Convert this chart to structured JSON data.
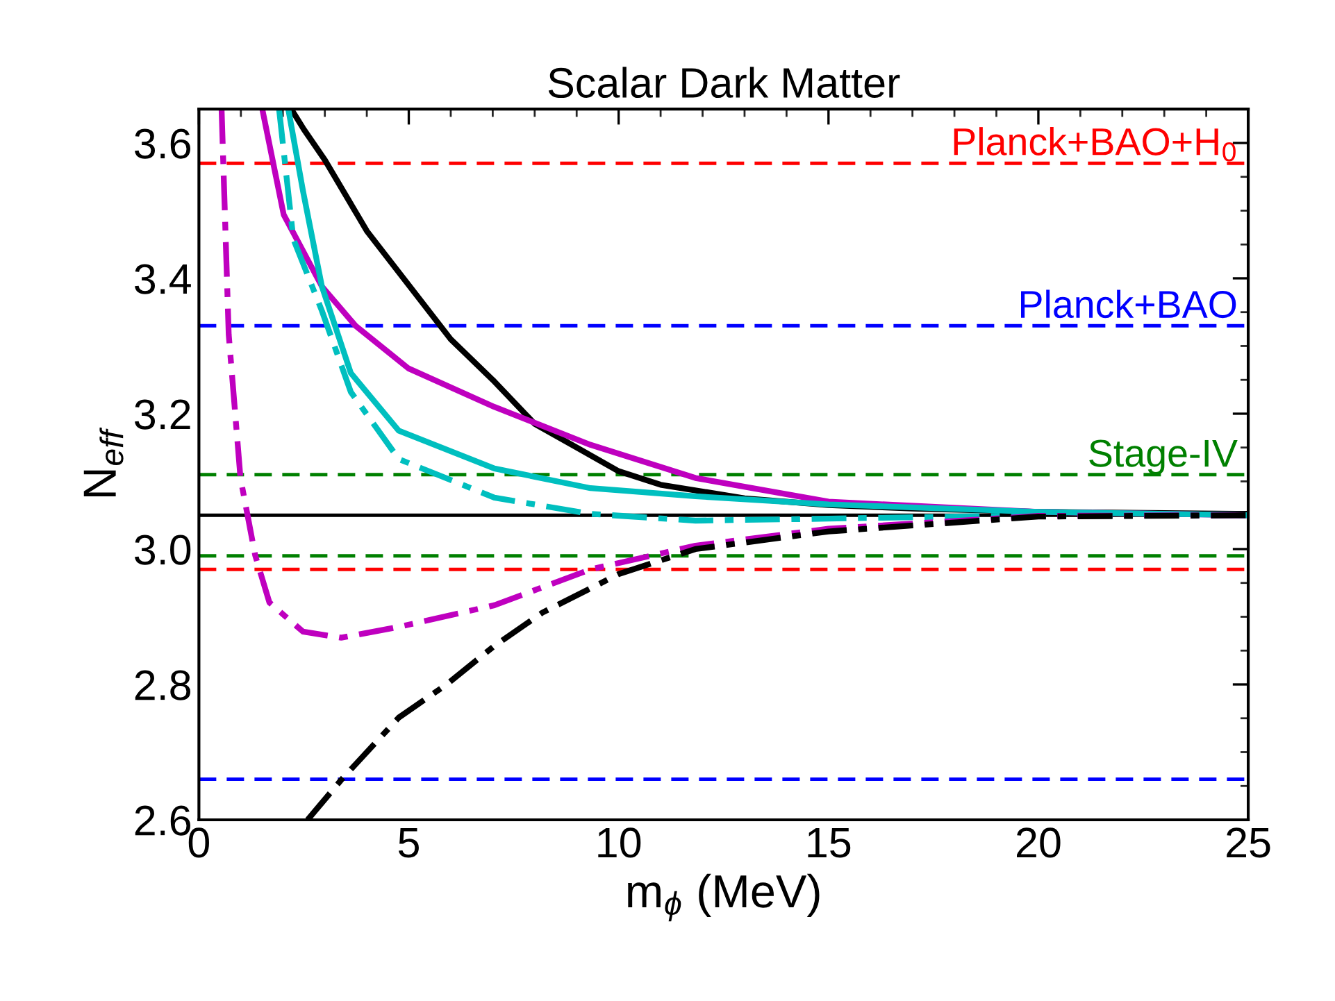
{
  "chart_data": {
    "type": "line",
    "title": "Scalar Dark Matter",
    "xlabel": "m$_{ϕ}$ (MeV)",
    "ylabel": "N$_{eff}$",
    "xlim": [
      0,
      25
    ],
    "xticks": [
      0,
      5,
      10,
      15,
      20,
      25
    ],
    "ylim": [
      2.6,
      3.65
    ],
    "yticks": [
      2.6,
      2.8,
      {
        "value": 3,
        "label": "3.0"
      },
      3.2,
      3.4,
      3.6
    ],
    "grid": false,
    "legend": false,
    "marker": "none",
    "series": [
      {
        "color": "#000000",
        "line_style": "solid",
        "x": [
          2.2,
          2.5,
          3.0,
          4,
          5,
          6,
          7,
          8,
          9,
          10,
          11,
          12,
          13,
          15,
          17,
          20,
          25
        ],
        "values": [
          3.65,
          3.62,
          3.575,
          3.47,
          3.39,
          3.31,
          3.25,
          3.185,
          3.15,
          3.115,
          3.095,
          3.085,
          3.075,
          3.065,
          3.06,
          3.055,
          3.052
        ]
      },
      {
        "color": "#bf00bf",
        "line_style": "solid",
        "x": [
          1.51,
          2.02,
          2.93,
          3.73,
          4.99,
          7.04,
          9.33,
          11.83,
          15,
          20,
          25
        ],
        "values": [
          3.65,
          3.494,
          3.388,
          3.33,
          3.267,
          3.21,
          3.154,
          3.105,
          3.07,
          3.055,
          3.05
        ]
      },
      {
        "color": "#00bfbf",
        "line_style": "solid",
        "x": [
          2.13,
          2.48,
          2.93,
          3.62,
          4.76,
          7.04,
          9.33,
          11.83,
          15,
          20,
          25
        ],
        "values": [
          3.65,
          3.529,
          3.388,
          3.26,
          3.175,
          3.119,
          3.09,
          3.078,
          3.066,
          3.055,
          3.05
        ]
      },
      {
        "color": "#00bfbf",
        "line_style": "dashdot",
        "x": [
          1.91,
          2.25,
          2.93,
          3.62,
          4.76,
          7.04,
          9.33,
          11.83,
          15,
          20,
          25
        ],
        "values": [
          3.65,
          3.458,
          3.352,
          3.232,
          3.133,
          3.076,
          3.052,
          3.042,
          3.045,
          3.05,
          3.05
        ]
      },
      {
        "color": "#bf00bf",
        "line_style": "dashdot",
        "x": [
          0.54,
          0.71,
          0.99,
          1.34,
          1.68,
          2.48,
          3.39,
          4.76,
          7.04,
          9.33,
          11.83,
          15,
          20,
          25
        ],
        "values": [
          3.65,
          3.317,
          3.105,
          2.991,
          2.921,
          2.878,
          2.869,
          2.885,
          2.917,
          2.97,
          3.005,
          3.03,
          3.049,
          3.05
        ]
      },
      {
        "color": "#000000",
        "line_style": "dashdot",
        "x": [
          2.59,
          3.39,
          4.76,
          5.9,
          7.04,
          8.18,
          10.0,
          11.83,
          15,
          20,
          25
        ],
        "values": [
          2.6,
          2.659,
          2.751,
          2.8,
          2.857,
          2.906,
          2.963,
          3.0,
          3.026,
          3.048,
          3.05
        ]
      }
    ],
    "ref_lines": [
      {
        "axis": "y",
        "value": 3.57,
        "label": "Planck+BAO+H$_{0}$",
        "color": "#ff0000",
        "line_style": "dashed"
      },
      {
        "axis": "y",
        "value": 3.33,
        "label": "Planck+BAO",
        "color": "#0000ff",
        "line_style": "dashed"
      },
      {
        "axis": "y",
        "value": 3.11,
        "label": "Stage-IV",
        "color": "#008000",
        "line_style": "dashed"
      },
      {
        "axis": "y",
        "value": 3.05,
        "color": "#000000",
        "line_style": "solid"
      },
      {
        "axis": "y",
        "value": 2.99,
        "color": "#008000",
        "line_style": "dashed"
      },
      {
        "axis": "y",
        "value": 2.97,
        "color": "#ff0000",
        "line_style": "dashed"
      },
      {
        "axis": "y",
        "value": 2.66,
        "color": "#0000ff",
        "line_style": "dashed"
      }
    ]
  }
}
